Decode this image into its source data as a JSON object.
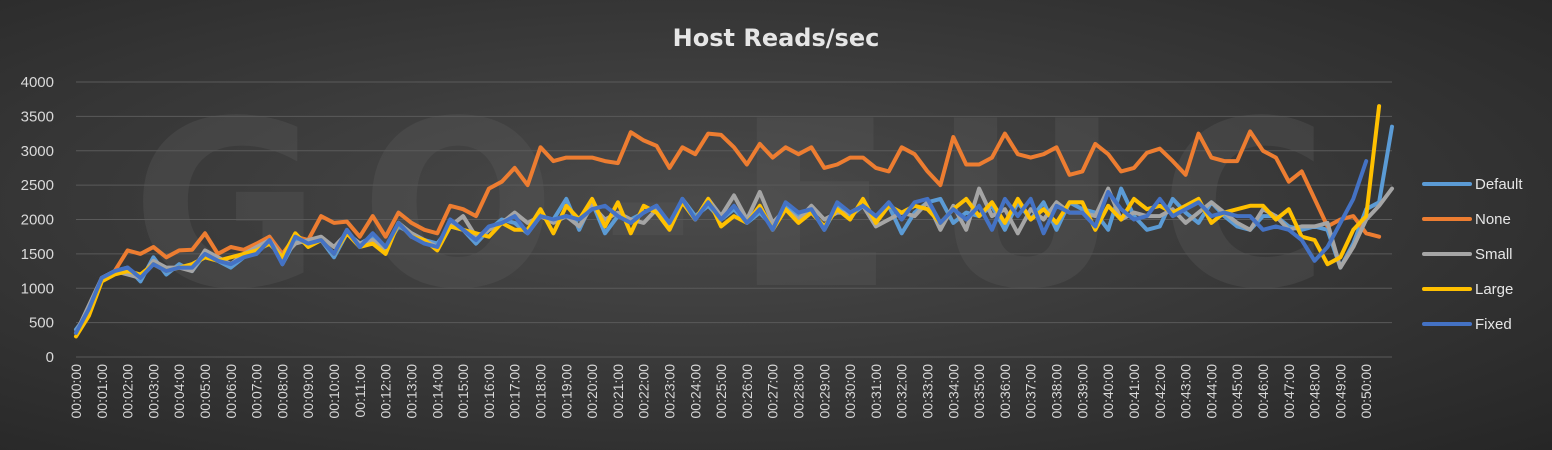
{
  "watermark": "GO-EUC",
  "chart_data": {
    "type": "line",
    "title": "Host Reads/sec",
    "xlabel": "",
    "ylabel": "",
    "ylim": [
      0,
      4000
    ],
    "yticks": [
      "0",
      "500",
      "1000",
      "1500",
      "2000",
      "2500",
      "3000",
      "3500",
      "4000"
    ],
    "xtick_labels": [
      "00:00:00",
      "00:01:00",
      "00:02:00",
      "00:03:00",
      "00:04:00",
      "00:05:00",
      "00:06:00",
      "00:07:00",
      "00:08:00",
      "00:09:00",
      "00:10:00",
      "00:11:00",
      "00:12:00",
      "00:13:00",
      "00:14:00",
      "00:15:00",
      "00:16:00",
      "00:17:00",
      "00:18:00",
      "00:19:00",
      "00:20:00",
      "00:21:00",
      "00:22:00",
      "00:23:00",
      "00:24:00",
      "00:25:00",
      "00:26:00",
      "00:27:00",
      "00:28:00",
      "00:29:00",
      "00:30:00",
      "00:31:00",
      "00:32:00",
      "00:33:00",
      "00:34:00",
      "00:35:00",
      "00:36:00",
      "00:37:00",
      "00:38:00",
      "00:39:00",
      "00:40:00",
      "00:41:00",
      "00:42:00",
      "00:43:00",
      "00:44:00",
      "00:45:00",
      "00:46:00",
      "00:47:00",
      "00:48:00",
      "00:49:00",
      "00:50:00"
    ],
    "x_step_seconds": 30,
    "grid": true,
    "legend_position": "right",
    "series": [
      {
        "name": "Default",
        "color": "#5b9bd5",
        "values": [
          400,
          650,
          1150,
          1250,
          1300,
          1100,
          1450,
          1200,
          1350,
          1250,
          1500,
          1400,
          1300,
          1450,
          1550,
          1750,
          1350,
          1700,
          1650,
          1700,
          1450,
          1800,
          1650,
          1750,
          1600,
          1900,
          1800,
          1700,
          1650,
          1900,
          1850,
          1650,
          1850,
          2000,
          1950,
          1800,
          2050,
          2000,
          2300,
          1850,
          2250,
          1800,
          2050,
          2000,
          2100,
          2200,
          1900,
          2300,
          2050,
          2200,
          2000,
          2150,
          1950,
          2100,
          1900,
          2200,
          2050,
          2150,
          1850,
          2200,
          2050,
          2200,
          2000,
          2200,
          1800,
          2100,
          2250,
          2300,
          1950,
          2100,
          2050,
          2200,
          1850,
          2250,
          2000,
          2250,
          1850,
          2250,
          2150,
          2100,
          1850,
          2450,
          2050,
          1850,
          1900,
          2300,
          2100,
          1950,
          2250,
          2050,
          1900,
          1850,
          2050,
          2050,
          1900,
          1850,
          1900,
          1850,
          1300,
          1650,
          2150,
          2250,
          3350
        ]
      },
      {
        "name": "None",
        "color": "#ed7d31",
        "values": [
          350,
          700,
          1150,
          1250,
          1550,
          1500,
          1600,
          1450,
          1550,
          1560,
          1800,
          1500,
          1600,
          1560,
          1650,
          1750,
          1500,
          1750,
          1700,
          2050,
          1950,
          1970,
          1750,
          2050,
          1750,
          2100,
          1950,
          1850,
          1800,
          2200,
          2150,
          2050,
          2450,
          2550,
          2750,
          2500,
          3050,
          2850,
          2900,
          2900,
          2900,
          2850,
          2820,
          3270,
          3150,
          3070,
          2750,
          3050,
          2950,
          3250,
          3230,
          3050,
          2800,
          3100,
          2900,
          3050,
          2950,
          3050,
          2750,
          2800,
          2900,
          2900,
          2750,
          2700,
          3050,
          2950,
          2700,
          2500,
          3200,
          2800,
          2800,
          2900,
          3250,
          2950,
          2900,
          2950,
          3050,
          2650,
          2700,
          3100,
          2950,
          2700,
          2750,
          2970,
          3030,
          2850,
          2650,
          3250,
          2900,
          2850,
          2850,
          3280,
          3000,
          2900,
          2550,
          2700,
          2300,
          1900,
          2000,
          2050,
          1800,
          1750
        ]
      },
      {
        "name": "Small",
        "color": "#a5a5a5",
        "values": [
          350,
          750,
          1150,
          1250,
          1200,
          1150,
          1400,
          1300,
          1300,
          1250,
          1550,
          1450,
          1350,
          1500,
          1600,
          1700,
          1450,
          1650,
          1700,
          1750,
          1600,
          1800,
          1650,
          1700,
          1550,
          1950,
          1800,
          1700,
          1600,
          1900,
          2050,
          1750,
          1850,
          1950,
          2100,
          1950,
          2050,
          1950,
          2050,
          1900,
          2200,
          2000,
          2100,
          2000,
          1950,
          2150,
          1950,
          2250,
          2000,
          2300,
          2050,
          2350,
          2000,
          2400,
          1950,
          2150,
          2000,
          2200,
          2000,
          2100,
          2100,
          2200,
          1900,
          2000,
          2100,
          2050,
          2250,
          1850,
          2200,
          1850,
          2450,
          2050,
          2150,
          1800,
          2150,
          2000,
          2250,
          2100,
          2100,
          2050,
          2450,
          2000,
          2100,
          2050,
          2050,
          2150,
          1950,
          2100,
          2250,
          2100,
          1950,
          1850,
          2150,
          2050,
          1850,
          1900,
          1900,
          1950,
          1300,
          1600,
          2000,
          2200,
          2450
        ]
      },
      {
        "name": "Large",
        "color": "#ffc000",
        "values": [
          300,
          600,
          1100,
          1200,
          1250,
          1200,
          1350,
          1250,
          1300,
          1350,
          1450,
          1400,
          1450,
          1500,
          1550,
          1650,
          1450,
          1800,
          1600,
          1700,
          1500,
          1800,
          1600,
          1650,
          1500,
          1950,
          1750,
          1700,
          1550,
          1900,
          1850,
          1800,
          1750,
          1950,
          1850,
          1850,
          2150,
          1800,
          2200,
          2000,
          2300,
          1900,
          2250,
          1800,
          2200,
          2100,
          1850,
          2250,
          2000,
          2300,
          1900,
          2050,
          1950,
          2200,
          1850,
          2150,
          1950,
          2100,
          1900,
          2150,
          2000,
          2300,
          1950,
          2200,
          2100,
          2200,
          2150,
          1950,
          2150,
          2300,
          2050,
          2250,
          1950,
          2300,
          2000,
          2150,
          1950,
          2250,
          2250,
          1850,
          2200,
          2000,
          2300,
          2150,
          2200,
          2100,
          2200,
          2300,
          1950,
          2100,
          2150,
          2200,
          2200,
          2000,
          2150,
          1750,
          1700,
          1350,
          1450,
          1850,
          2050,
          3650
        ]
      },
      {
        "name": "Fixed",
        "color": "#4472c4",
        "values": [
          350,
          700,
          1150,
          1250,
          1300,
          1150,
          1350,
          1250,
          1300,
          1300,
          1500,
          1400,
          1350,
          1450,
          1500,
          1700,
          1350,
          1750,
          1650,
          1700,
          1500,
          1850,
          1600,
          1800,
          1600,
          1950,
          1750,
          1650,
          1600,
          2000,
          1850,
          1700,
          1900,
          1950,
          2050,
          1800,
          2050,
          2000,
          2050,
          2000,
          2150,
          2200,
          2050,
          1950,
          2100,
          2200,
          1950,
          2300,
          2000,
          2250,
          2000,
          2200,
          1950,
          2150,
          1850,
          2250,
          2100,
          2150,
          1850,
          2250,
          2100,
          2200,
          2050,
          2250,
          2000,
          2250,
          2300,
          1950,
          2150,
          2000,
          2200,
          1850,
          2300,
          2050,
          2300,
          1800,
          2200,
          2100,
          2100,
          1900,
          2400,
          2150,
          2000,
          2050,
          2300,
          2050,
          2150,
          2250,
          2050,
          2100,
          2050,
          2050,
          1850,
          1900,
          1850,
          1700,
          1400,
          1600,
          1950,
          2300,
          2850
        ]
      }
    ]
  }
}
